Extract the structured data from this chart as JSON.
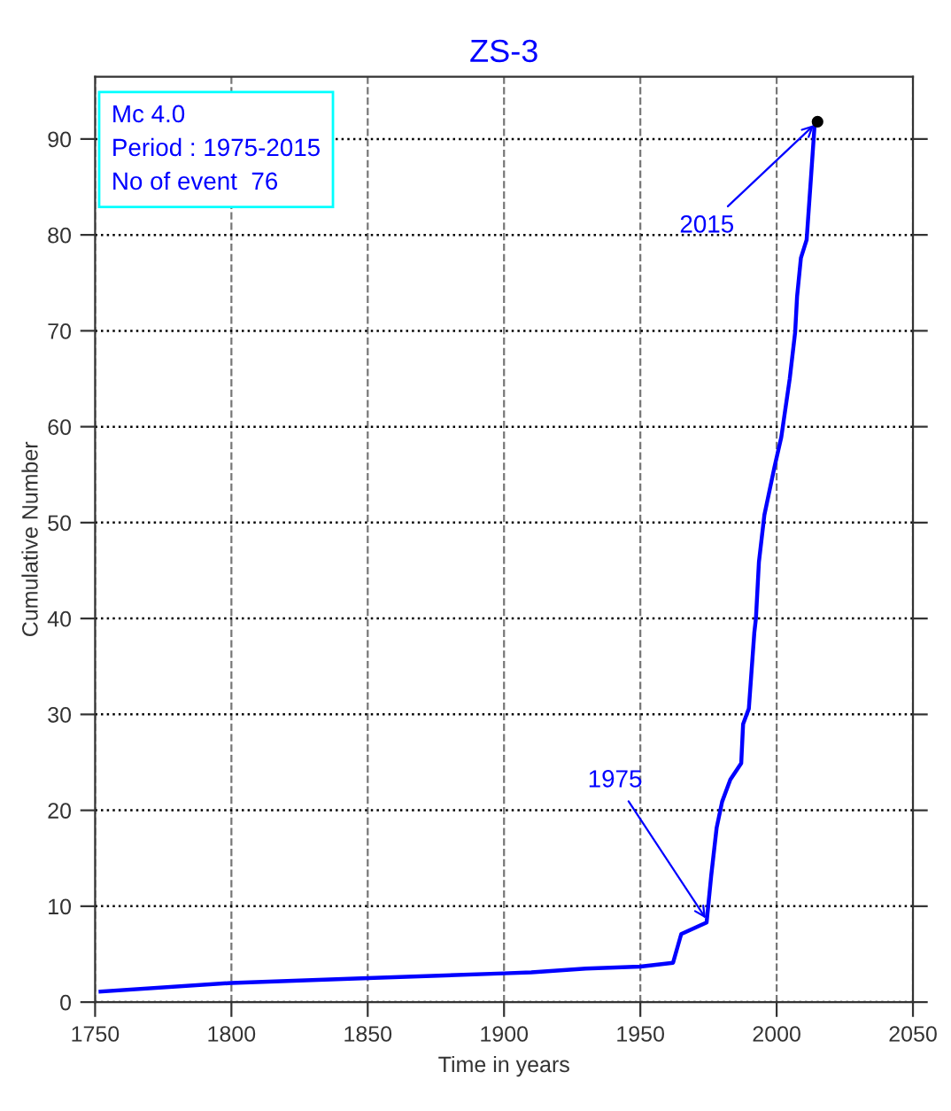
{
  "chart_data": {
    "type": "line",
    "title": "ZS-3",
    "xlabel": "Time in years",
    "ylabel": "Cumulative Number",
    "xlim": [
      1750,
      2050
    ],
    "xticks": [
      1750,
      1800,
      1850,
      1900,
      1950,
      2000,
      2050
    ],
    "ylim": [
      0,
      96.5
    ],
    "yticks": [
      0,
      10,
      20,
      30,
      40,
      50,
      60,
      70,
      80,
      90
    ],
    "grid": true,
    "legend": false,
    "series": [
      {
        "color": "#0000ff",
        "x": [
          1752,
          1800,
          1850,
          1900,
          1910,
          1930,
          1950,
          1962,
          1965,
          1974.3,
          1976,
          1978,
          1980,
          1983,
          1987,
          1987.7,
          1989.8,
          1991.8,
          1992.4,
          1993.5,
          1995.5,
          1999.2,
          2001.7,
          2004.8,
          2006.8,
          2007.5,
          2008.9,
          2011,
          2012.6,
          2014,
          2015
        ],
        "values": [
          1.1,
          2.0,
          2.5,
          3.0,
          3.1,
          3.5,
          3.7,
          4.1,
          7.1,
          8.3,
          13.2,
          18.2,
          20.9,
          23.2,
          24.9,
          29,
          30.6,
          38.5,
          40,
          45.9,
          50.8,
          55.8,
          58.9,
          65,
          69.9,
          73.6,
          77.6,
          79.5,
          86,
          91.8,
          91.8
        ]
      },
      {
        "type": "scatter",
        "color": "#000000",
        "marker": "circle",
        "x": [
          2015
        ],
        "values": [
          91.8
        ]
      }
    ],
    "annotations": [
      "Mc 4.0",
      "Period : 1975-2015",
      "No of event  76",
      {
        "text": "1975",
        "x": 1975,
        "y": 8.3
      },
      {
        "text": "2015",
        "x": 2015,
        "y": 91.8
      }
    ]
  }
}
